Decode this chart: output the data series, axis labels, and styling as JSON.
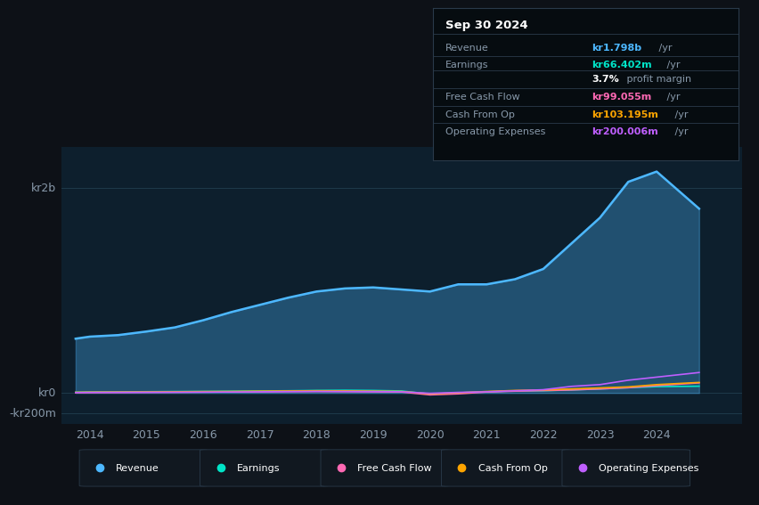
{
  "bg_color": "#0d1117",
  "chart_bg": "#0d1f2d",
  "title_box": {
    "title": "Sep 30 2024",
    "rows": [
      {
        "label": "Revenue",
        "value": "kr1.798b",
        "suffix": " /yr",
        "value_color": "#4db8ff"
      },
      {
        "label": "Earnings",
        "value": "kr66.402m",
        "suffix": " /yr",
        "value_color": "#00e5c8"
      },
      {
        "label": "",
        "value": "3.7%",
        "suffix": " profit margin",
        "value_color": "#ffffff"
      },
      {
        "label": "Free Cash Flow",
        "value": "kr99.055m",
        "suffix": " /yr",
        "value_color": "#ff69b4"
      },
      {
        "label": "Cash From Op",
        "value": "kr103.195m",
        "suffix": " /yr",
        "value_color": "#ffa500"
      },
      {
        "label": "Operating Expenses",
        "value": "kr200.006m",
        "suffix": " /yr",
        "value_color": "#bf5fff"
      }
    ]
  },
  "yticks_labels": [
    "kr2b",
    "kr0",
    "-kr200m"
  ],
  "yticks_values": [
    2000000000,
    0,
    -200000000
  ],
  "xticks": [
    2014,
    2015,
    2016,
    2017,
    2018,
    2019,
    2020,
    2021,
    2022,
    2023,
    2024
  ],
  "xlim": [
    2013.5,
    2025.5
  ],
  "ylim": [
    -300000000,
    2400000000
  ],
  "series": {
    "Revenue": {
      "color": "#4db8ff",
      "x": [
        2013.75,
        2014,
        2014.5,
        2015,
        2015.5,
        2016,
        2016.5,
        2017,
        2017.5,
        2018,
        2018.5,
        2019,
        2019.5,
        2020,
        2020.5,
        2021,
        2021.5,
        2022,
        2022.5,
        2023,
        2023.5,
        2024,
        2024.75
      ],
      "y": [
        530000000,
        550000000,
        565000000,
        600000000,
        640000000,
        710000000,
        790000000,
        860000000,
        930000000,
        990000000,
        1020000000,
        1030000000,
        1010000000,
        990000000,
        1060000000,
        1060000000,
        1110000000,
        1210000000,
        1460000000,
        1710000000,
        2060000000,
        2160000000,
        1798000000
      ]
    },
    "Earnings": {
      "color": "#00e5c8",
      "x": [
        2013.75,
        2014,
        2014.5,
        2015,
        2015.5,
        2016,
        2016.5,
        2017,
        2017.5,
        2018,
        2018.5,
        2019,
        2019.5,
        2020,
        2020.5,
        2021,
        2021.5,
        2022,
        2022.5,
        2023,
        2023.5,
        2024,
        2024.75
      ],
      "y": [
        8000000,
        10000000,
        11000000,
        13000000,
        15000000,
        16000000,
        18000000,
        20000000,
        22000000,
        25000000,
        27000000,
        25000000,
        20000000,
        -10000000,
        2000000,
        12000000,
        20000000,
        22000000,
        30000000,
        40000000,
        52000000,
        62000000,
        66402000
      ]
    },
    "FreeCashFlow": {
      "color": "#ff69b4",
      "x": [
        2013.75,
        2014,
        2014.5,
        2015,
        2015.5,
        2016,
        2016.5,
        2017,
        2017.5,
        2018,
        2018.5,
        2019,
        2019.5,
        2020,
        2020.5,
        2021,
        2021.5,
        2022,
        2022.5,
        2023,
        2023.5,
        2024,
        2024.75
      ],
      "y": [
        4000000,
        5000000,
        5500000,
        6500000,
        7500000,
        8500000,
        10000000,
        12000000,
        14000000,
        15000000,
        14000000,
        12000000,
        10000000,
        -18000000,
        -8000000,
        10000000,
        18000000,
        24000000,
        30000000,
        40000000,
        52000000,
        72000000,
        99055000
      ]
    },
    "CashFromOp": {
      "color": "#ffa500",
      "x": [
        2013.75,
        2014,
        2014.5,
        2015,
        2015.5,
        2016,
        2016.5,
        2017,
        2017.5,
        2018,
        2018.5,
        2019,
        2019.5,
        2020,
        2020.5,
        2021,
        2021.5,
        2022,
        2022.5,
        2023,
        2023.5,
        2024,
        2024.75
      ],
      "y": [
        7000000,
        8000000,
        9000000,
        10000000,
        12000000,
        14000000,
        15000000,
        18000000,
        20000000,
        22000000,
        21000000,
        18000000,
        15000000,
        -8000000,
        2000000,
        15000000,
        25000000,
        30000000,
        40000000,
        50000000,
        60000000,
        82000000,
        103195000
      ]
    },
    "OperatingExpenses": {
      "color": "#bf5fff",
      "x": [
        2013.75,
        2014,
        2014.5,
        2015,
        2015.5,
        2016,
        2016.5,
        2017,
        2017.5,
        2018,
        2018.5,
        2019,
        2019.5,
        2020,
        2020.5,
        2021,
        2021.5,
        2022,
        2022.5,
        2023,
        2023.5,
        2024,
        2024.75
      ],
      "y": [
        4000000,
        5000000,
        6000000,
        7000000,
        8000000,
        9000000,
        10000000,
        12000000,
        14000000,
        16000000,
        15000000,
        14000000,
        12000000,
        -3000000,
        6000000,
        12000000,
        22000000,
        32000000,
        65000000,
        82000000,
        125000000,
        155000000,
        200006000
      ]
    }
  },
  "legend": [
    {
      "label": "Revenue",
      "color": "#4db8ff"
    },
    {
      "label": "Earnings",
      "color": "#00e5c8"
    },
    {
      "label": "Free Cash Flow",
      "color": "#ff69b4"
    },
    {
      "label": "Cash From Op",
      "color": "#ffa500"
    },
    {
      "label": "Operating Expenses",
      "color": "#bf5fff"
    }
  ]
}
